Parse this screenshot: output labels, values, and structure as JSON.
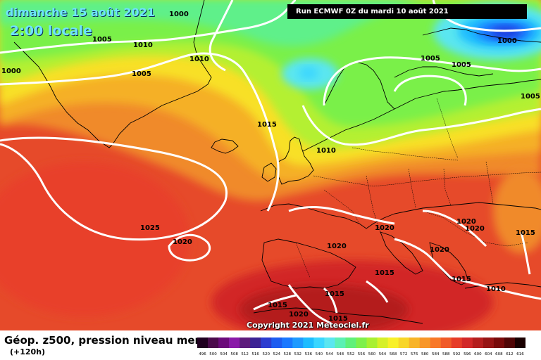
{
  "header": {
    "date": "dimanche 15 août 2021",
    "time": "2:00 locale",
    "run": "Run ECMWF 0Z du mardi 10 août 2021"
  },
  "footer": {
    "title": "Géop. z500, pression niveau mer",
    "lead": "(+120h)",
    "copyright": "Copyright 2021 Meteociel.fr"
  },
  "isobar_labels": [
    "1000",
    "1005",
    "1010",
    "1010",
    "1005",
    "1000",
    "1015",
    "1010",
    "1005",
    "1005",
    "1000",
    "1005",
    "1025",
    "1020",
    "1020",
    "1020",
    "1020",
    "1020",
    "1020",
    "1015",
    "1015",
    "1010",
    "1015",
    "1015",
    "1020",
    "1015",
    "1015"
  ],
  "scale": {
    "values": [
      "496",
      "500",
      "504",
      "508",
      "512",
      "516",
      "520",
      "524",
      "528",
      "532",
      "536",
      "540",
      "544",
      "548",
      "552",
      "556",
      "560",
      "564",
      "568",
      "572",
      "576",
      "580",
      "584",
      "588",
      "592",
      "596",
      "600",
      "604",
      "608",
      "612",
      "616"
    ],
    "colors": [
      "#200020",
      "#4b0a4b",
      "#6b0a7a",
      "#8a1aa8",
      "#5e1c7c",
      "#3c2294",
      "#2c3cd0",
      "#1d5cf0",
      "#1a78ff",
      "#1e9aff",
      "#1ebcff",
      "#3ad6ff",
      "#5ae6f0",
      "#5cf0b4",
      "#60f07a",
      "#7ef04c",
      "#a8f032",
      "#d6f028",
      "#f8f028",
      "#f8d628",
      "#f8b428",
      "#f89628",
      "#f87828",
      "#f05a28",
      "#e63c28",
      "#d22828",
      "#b41e1e",
      "#961414",
      "#780a0a",
      "#500505",
      "#1a0000"
    ]
  }
}
